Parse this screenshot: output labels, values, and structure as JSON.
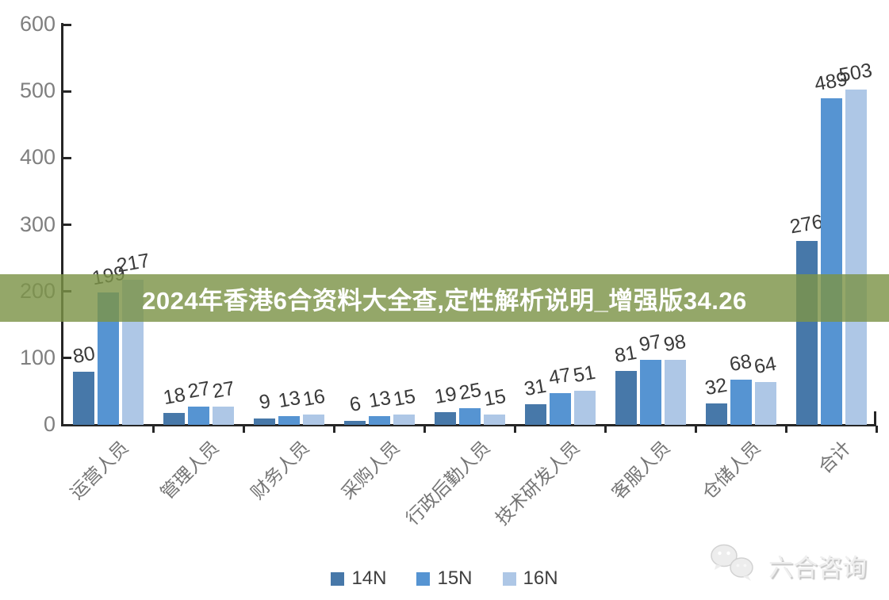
{
  "banner": {
    "text": "2024年香港6合资料大全查,定性解析说明_增强版34.26",
    "bg_color": "rgba(124,148,72,0.82)",
    "text_color": "#ffffff"
  },
  "watermark": {
    "text": "六合咨询",
    "icon": "chat-bubbles-icon"
  },
  "chart_data": {
    "type": "bar",
    "title": "",
    "xlabel": "",
    "ylabel": "",
    "categories": [
      "运营人员",
      "管理人员",
      "财务人员",
      "采购人员",
      "行政后勤人员",
      "技术研发人员",
      "客服人员",
      "仓储人员",
      "合计"
    ],
    "series": [
      {
        "name": "14N",
        "color": "#4778a9",
        "values": [
          80,
          18,
          9,
          6,
          19,
          31,
          81,
          32,
          276
        ]
      },
      {
        "name": "15N",
        "color": "#5694d2",
        "values": [
          199,
          27,
          13,
          13,
          25,
          47,
          97,
          68,
          489
        ]
      },
      {
        "name": "16N",
        "color": "#aec7e6",
        "values": [
          217,
          27,
          16,
          15,
          15,
          51,
          98,
          64,
          503
        ]
      }
    ],
    "ylim": [
      0,
      600
    ],
    "yticks": [
      0,
      100,
      200,
      300,
      400,
      500,
      600
    ],
    "grid": false,
    "legend_position": "bottom",
    "value_labels": true,
    "axis_color": "#262626",
    "tick_label_color": "#7f7f7f",
    "value_label_color": "#3a3a3a"
  }
}
